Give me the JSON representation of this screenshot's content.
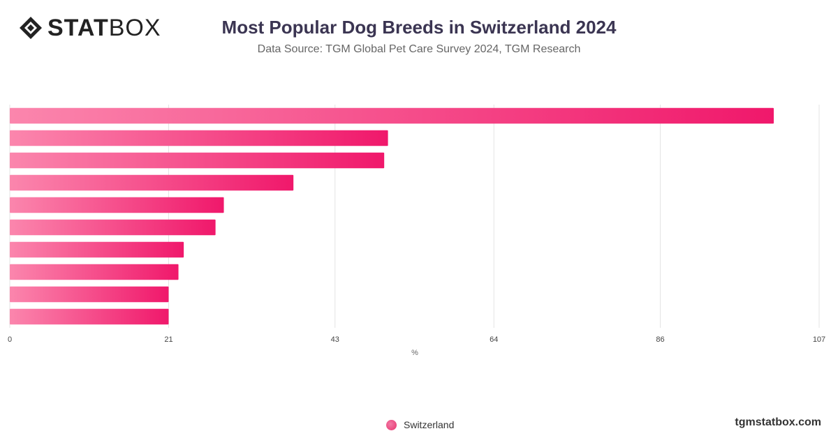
{
  "header": {
    "logo_bold": "STAT",
    "logo_thin": "BOX",
    "title": "Most Popular Dog Breeds in Switzerland 2024",
    "subtitle": "Data Source: TGM Global Pet Care Survey 2024, TGM Research"
  },
  "footer": {
    "brand": "tgmstatbox.com"
  },
  "colors": {
    "bar_start": "#fb86ad",
    "bar_end": "#f0186b",
    "grid": "#e3e3e3",
    "title": "#3b3552"
  },
  "icons": {
    "logo": "statbox-diamond-icon",
    "legend": "legend-dot-icon"
  },
  "chart_data": {
    "type": "bar",
    "orientation": "horizontal",
    "categories": [
      "",
      "",
      "",
      "",
      "",
      "",
      "",
      "",
      "",
      ""
    ],
    "series": [
      {
        "name": "Switzerland",
        "values": [
          101,
          50,
          49.5,
          37.5,
          28.3,
          27.2,
          23,
          22.3,
          21,
          21
        ]
      }
    ],
    "xlabel": "%",
    "xlim": [
      0,
      107
    ],
    "xticks": [
      0,
      21,
      43,
      64,
      86,
      107
    ],
    "grid": true,
    "legend_position": "bottom-center"
  }
}
